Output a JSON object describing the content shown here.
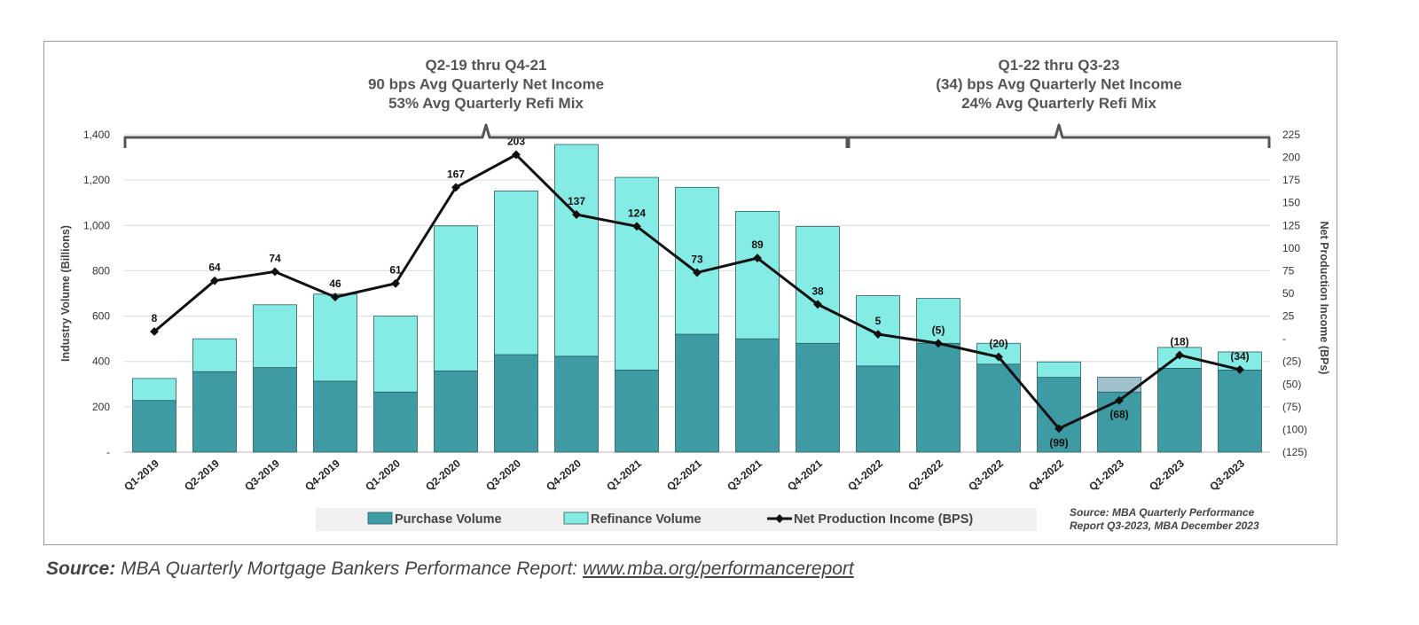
{
  "chart_data": {
    "type": "bar",
    "stacked": true,
    "categories": [
      "Q1-2019",
      "Q2-2019",
      "Q3-2019",
      "Q4-2019",
      "Q1-2020",
      "Q2-2020",
      "Q3-2020",
      "Q4-2020",
      "Q1-2021",
      "Q2-2021",
      "Q3-2021",
      "Q4-2021",
      "Q1-2022",
      "Q2-2022",
      "Q3-2022",
      "Q4-2022",
      "Q1-2023",
      "Q2-2023",
      "Q3-2023"
    ],
    "series": [
      {
        "name": "Purchase Volume",
        "kind": "bar",
        "axis": "left",
        "color": "#3e9ba3",
        "values": [
          228,
          355,
          373,
          313,
          265,
          358,
          430,
          423,
          362,
          520,
          500,
          480,
          380,
          480,
          388,
          330,
          265,
          370,
          362
        ]
      },
      {
        "name": "Refinance Volume",
        "kind": "bar",
        "axis": "left",
        "color": "#84ece4",
        "values": [
          97,
          145,
          277,
          384,
          335,
          640,
          722,
          934,
          850,
          648,
          562,
          515,
          310,
          198,
          92,
          68,
          65,
          92,
          80
        ]
      },
      {
        "name": "Net Production Income (BPS)",
        "kind": "line",
        "axis": "right",
        "color": "#111111",
        "values": [
          8,
          64,
          74,
          46,
          61,
          167,
          203,
          137,
          124,
          73,
          89,
          38,
          5,
          -5,
          -20,
          -99,
          -68,
          -18,
          -34
        ],
        "labels": [
          "8",
          "64",
          "74",
          "46",
          "61",
          "167",
          "203",
          "137",
          "124",
          "73",
          "89",
          "38",
          "5",
          "(5)",
          "(20)",
          "(99)",
          "(68)",
          "(18)",
          "(34)"
        ]
      }
    ],
    "ylabel": "Industry Volume (Billions)",
    "ylabel_right": "Net Production Income (BPs)",
    "ylim": [
      0,
      1400
    ],
    "ylim_right": [
      -125,
      225
    ],
    "yticks_left": [
      "-",
      "200",
      "400",
      "600",
      "800",
      "1,000",
      "1,200",
      "1,400"
    ],
    "yticks_right": [
      "(125)",
      "(100)",
      "(75)",
      "(50)",
      "(25)",
      "-",
      "25",
      "50",
      "75",
      "100",
      "125",
      "150",
      "175",
      "200",
      "225"
    ],
    "grid": true,
    "legend_position": "bottom",
    "annotations": [
      {
        "lines": [
          "Q2-19 thru Q4-21",
          "90 bps Avg Quarterly  Net Income",
          "53% Avg Quarterly  Refi Mix"
        ],
        "from": "Q1-2019",
        "to": "Q4-2021"
      },
      {
        "lines": [
          "Q1-22 thru Q3-23",
          "(34) bps Avg Quarterly Net Income",
          "24% Avg Quarterly Refi Mix"
        ],
        "from": "Q1-2022",
        "to": "Q3-2023"
      }
    ],
    "source_note": [
      "Source: MBA Quarterly Performance",
      "Report Q3-2023, MBA December 2023"
    ]
  },
  "footer": {
    "source_label": "Source:",
    "source_text": "MBA Quarterly Mortgage Bankers Performance Report: ",
    "source_link": "www.mba.org/performancereport"
  }
}
